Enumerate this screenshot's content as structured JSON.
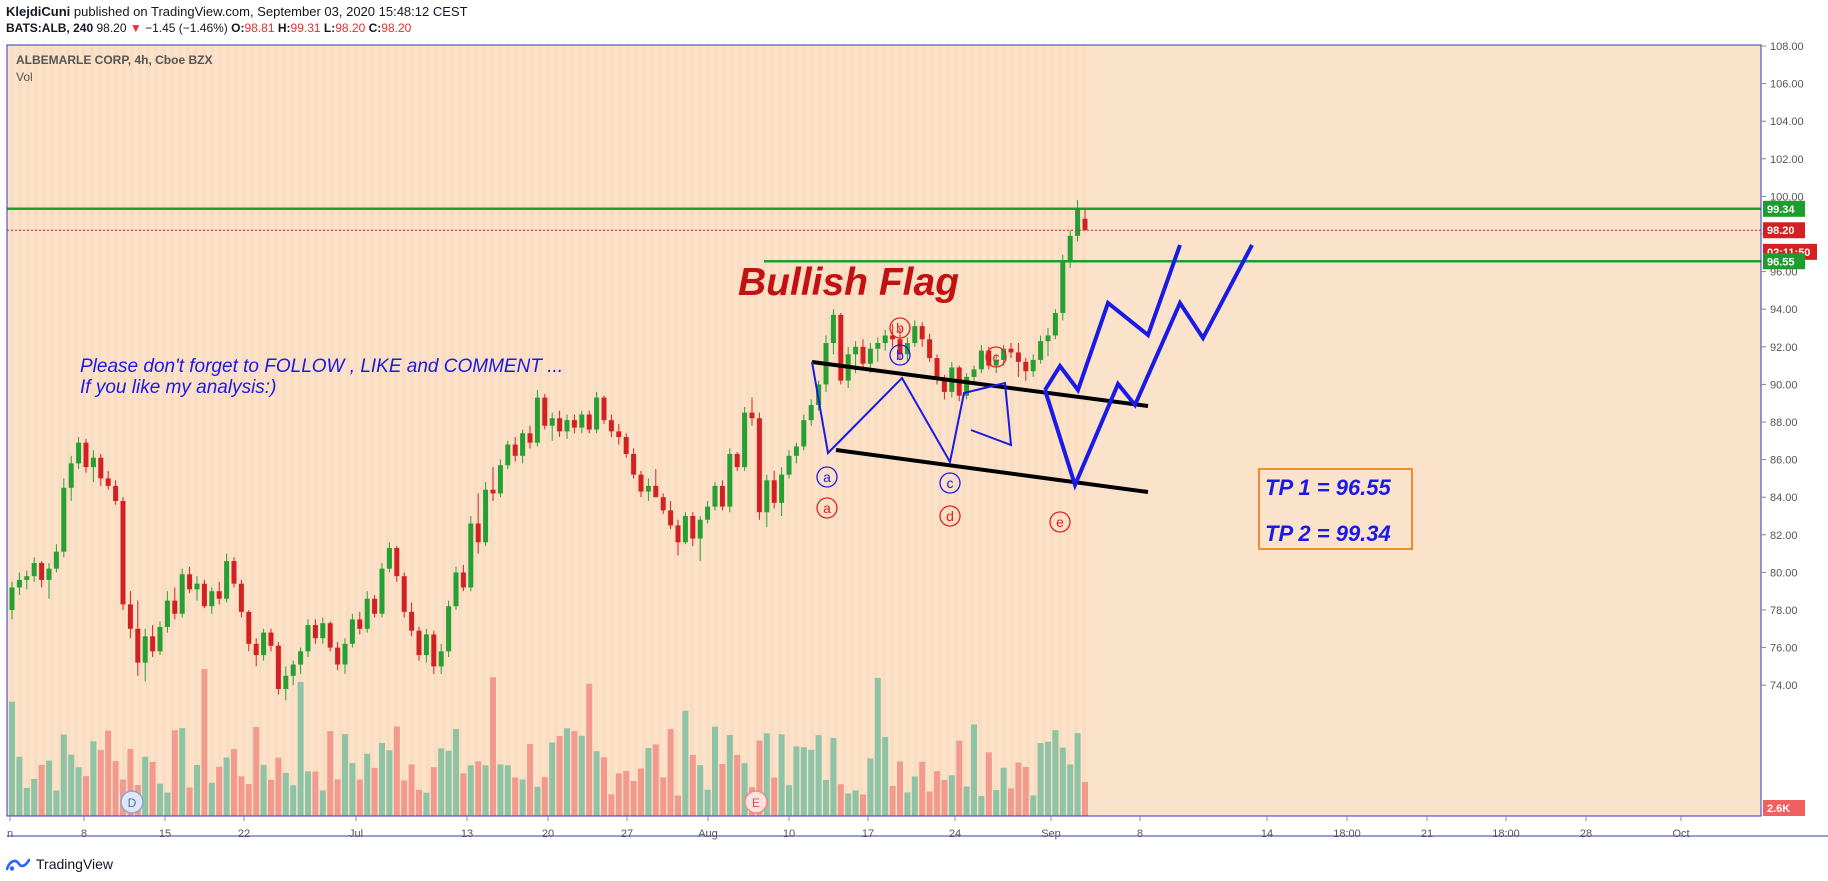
{
  "header": {
    "author": "KlejdiCuni",
    "published_text": " published on TradingView.com, September 03, 2020 15:48:12 CEST",
    "symbol_line": "BATS:ALB, 240",
    "last": "98.20",
    "change": "−1.45 (−1.46%)",
    "o_label": "O:",
    "o": "98.81",
    "h_label": "H:",
    "h": "99.31",
    "l_label": "L:",
    "l": "98.20",
    "c_label": "C:",
    "c": "98.20"
  },
  "pane": {
    "title": "ALBEMARLE CORP, 4h, Cboe BZX",
    "indicator": "Vol"
  },
  "footer": {
    "brand": "TradingView"
  },
  "colors": {
    "background": "#fbe3cb",
    "up": "#26a033",
    "down": "#d32121",
    "vol_up": "#8fc3a6",
    "vol_down": "#f39a8f",
    "support_line": "#1d9e2c",
    "projection": "#1a1ae6",
    "bullish_flag_text": "#c31010",
    "tp_box_border": "#f28c28"
  },
  "annotations": {
    "bullish_flag": "Bullish Flag",
    "note_line1": "Please don't forget  to FOLLOW , LIKE and COMMENT ...",
    "note_line2": "If you like my analysis:)",
    "tp1": "TP 1 = 96.55",
    "tp2": "TP 2 = 99.34",
    "wave_labels_blue": [
      "a",
      "b",
      "c"
    ],
    "wave_labels_red": [
      "a",
      "b",
      "c",
      "d",
      "e"
    ],
    "event_markers": [
      "D",
      "E"
    ]
  },
  "chart_data": {
    "type": "candlestick",
    "title": "ALBEMARLE CORP, 4h, Cboe BZX",
    "y_axis_ticks": [
      "108.00",
      "106.00",
      "104.00",
      "102.00",
      "100.00",
      "98.00",
      "96.00",
      "94.00",
      "92.00",
      "90.00",
      "88.00",
      "86.00",
      "84.00",
      "82.00",
      "80.00",
      "78.00",
      "76.00",
      "74.00"
    ],
    "x_axis_ticks": [
      "n",
      "8",
      "15",
      "22",
      "Jul",
      "13",
      "20",
      "27",
      "Aug",
      "10",
      "17",
      "24",
      "Sep",
      "8",
      "14",
      "18:00",
      "21",
      "18:00",
      "28",
      "Oct"
    ],
    "ylim": [
      73.2,
      108.6
    ],
    "price_labels": [
      {
        "label": "99.34",
        "value": 99.34,
        "color": "#1d9e2c"
      },
      {
        "label": "98.20",
        "value": 98.2,
        "color": "#d32121"
      },
      {
        "label": "02:11:50",
        "value": 97.05,
        "color": "#d32121"
      },
      {
        "label": "96.55",
        "value": 96.55,
        "color": "#1d9e2c"
      },
      {
        "label": "2.6K",
        "value": 73.6,
        "color": "#f15f60"
      }
    ],
    "horizontal_levels": [
      {
        "name": "TP 2",
        "value": 99.34
      },
      {
        "name": "TP 1",
        "value": 96.55
      },
      {
        "name": "last",
        "value": 98.2
      }
    ],
    "candles": [
      [
        78,
        79.5,
        77.5,
        79.2
      ],
      [
        79.2,
        80,
        78.8,
        79.6
      ],
      [
        79.6,
        80.1,
        79.1,
        79.8
      ],
      [
        79.8,
        80.8,
        79.5,
        80.5
      ],
      [
        80.5,
        80.6,
        79.2,
        79.6
      ],
      [
        79.6,
        80.5,
        78.6,
        80.2
      ],
      [
        80.2,
        81.5,
        80,
        81.1
      ],
      [
        81.1,
        85,
        80.8,
        84.5
      ],
      [
        84.5,
        86.2,
        83.8,
        85.8
      ],
      [
        85.8,
        87.2,
        85.5,
        86.9
      ],
      [
        86.9,
        87.1,
        85.3,
        85.6
      ],
      [
        85.6,
        86.5,
        84.8,
        86.1
      ],
      [
        86.1,
        86.3,
        84.6,
        85
      ],
      [
        85,
        85.4,
        84.4,
        84.6
      ],
      [
        84.6,
        84.9,
        83.6,
        83.8
      ],
      [
        83.8,
        84,
        78,
        78.3
      ],
      [
        78.3,
        79,
        76.5,
        77
      ],
      [
        77,
        78.5,
        74.5,
        75.2
      ],
      [
        75.2,
        77,
        74.2,
        76.6
      ],
      [
        76.6,
        77.2,
        75.5,
        75.8
      ],
      [
        75.8,
        77.4,
        75.6,
        77.1
      ],
      [
        77.1,
        79,
        76.8,
        78.5
      ],
      [
        78.5,
        79.2,
        77.5,
        77.8
      ],
      [
        77.8,
        80.2,
        77.6,
        79.9
      ],
      [
        79.9,
        80.3,
        78.9,
        79.1
      ],
      [
        79.1,
        79.8,
        78.5,
        79.4
      ],
      [
        79.4,
        79.6,
        78.1,
        78.2
      ],
      [
        78.2,
        79.2,
        77.8,
        79
      ],
      [
        79,
        79.5,
        78.3,
        78.6
      ],
      [
        78.6,
        81,
        78.4,
        80.6
      ],
      [
        80.6,
        80.8,
        79.2,
        79.4
      ],
      [
        79.4,
        79.6,
        77.6,
        77.9
      ],
      [
        77.9,
        78,
        75.8,
        76.2
      ],
      [
        76.2,
        76.5,
        75,
        75.6
      ],
      [
        75.6,
        77,
        75.3,
        76.8
      ],
      [
        76.8,
        77,
        75.8,
        76.1
      ],
      [
        76.1,
        76.3,
        73.5,
        73.8
      ],
      [
        73.8,
        75,
        73.2,
        74.5
      ],
      [
        74.5,
        75.3,
        74,
        75.1
      ],
      [
        75.1,
        76,
        74.6,
        75.8
      ],
      [
        75.8,
        77.5,
        75.5,
        77.2
      ],
      [
        77.2,
        77.5,
        76.2,
        76.5
      ],
      [
        76.5,
        77.6,
        76.2,
        77.3
      ],
      [
        77.3,
        77.4,
        75.8,
        76
      ],
      [
        76,
        76.3,
        74.8,
        75.1
      ],
      [
        75.1,
        76.5,
        74.6,
        76.2
      ],
      [
        76.2,
        77.8,
        76,
        77.5
      ],
      [
        77.5,
        77.9,
        76.7,
        77
      ],
      [
        77,
        79,
        76.8,
        78.6
      ],
      [
        78.6,
        78.8,
        77.6,
        77.8
      ],
      [
        77.8,
        80.5,
        77.6,
        80.2
      ],
      [
        80.2,
        81.6,
        80,
        81.3
      ],
      [
        81.3,
        81.4,
        79.5,
        79.8
      ],
      [
        79.8,
        80,
        77.6,
        77.9
      ],
      [
        77.9,
        78.4,
        76.6,
        76.9
      ],
      [
        76.9,
        77.1,
        75.3,
        75.6
      ],
      [
        75.6,
        77,
        75.2,
        76.7
      ],
      [
        76.7,
        76.9,
        74.6,
        75
      ],
      [
        75,
        76.2,
        74.6,
        75.8
      ],
      [
        75.8,
        78.5,
        75.5,
        78.2
      ],
      [
        78.2,
        80.3,
        78,
        80
      ],
      [
        80,
        80.4,
        79,
        79.2
      ],
      [
        79.2,
        83,
        79,
        82.6
      ],
      [
        82.6,
        84.2,
        81,
        81.6
      ],
      [
        81.6,
        84.8,
        81.4,
        84.4
      ],
      [
        84.4,
        85.6,
        83.8,
        84.2
      ],
      [
        84.2,
        86,
        84,
        85.7
      ],
      [
        85.7,
        87,
        85.5,
        86.8
      ],
      [
        86.8,
        87.2,
        85.9,
        86.2
      ],
      [
        86.2,
        87.6,
        85.8,
        87.4
      ],
      [
        87.4,
        87.8,
        86.6,
        86.9
      ],
      [
        86.9,
        89.7,
        86.7,
        89.3
      ],
      [
        89.3,
        89.5,
        87.6,
        87.8
      ],
      [
        87.8,
        88.5,
        87,
        88.2
      ],
      [
        88.2,
        88.6,
        87.2,
        87.5
      ],
      [
        87.5,
        88.4,
        87.1,
        88.1
      ],
      [
        88.1,
        88.4,
        87.4,
        87.7
      ],
      [
        87.7,
        88.6,
        87.4,
        88.4
      ],
      [
        88.4,
        88.6,
        87.4,
        87.6
      ],
      [
        87.6,
        89.6,
        87.4,
        89.3
      ],
      [
        89.3,
        89.4,
        87.9,
        88.1
      ],
      [
        88.1,
        88.4,
        87.2,
        87.5
      ],
      [
        87.5,
        87.9,
        86.8,
        87.2
      ],
      [
        87.2,
        87.4,
        86.1,
        86.3
      ],
      [
        86.3,
        86.6,
        85,
        85.2
      ],
      [
        85.2,
        85.4,
        84,
        84.3
      ],
      [
        84.3,
        85,
        83.8,
        84.6
      ],
      [
        84.6,
        85.5,
        84,
        84
      ],
      [
        84,
        84.2,
        83.1,
        83.3
      ],
      [
        83.3,
        83.8,
        82.3,
        82.5
      ],
      [
        82.5,
        82.8,
        80.9,
        81.6
      ],
      [
        81.6,
        83.2,
        81.5,
        83
      ],
      [
        83,
        83.2,
        81.4,
        81.8
      ],
      [
        81.8,
        83,
        80.6,
        82.8
      ],
      [
        82.8,
        83.8,
        82.6,
        83.5
      ],
      [
        83.5,
        84.8,
        83.3,
        84.6
      ],
      [
        84.6,
        84.9,
        83.3,
        83.5
      ],
      [
        83.5,
        86.6,
        83.2,
        86.3
      ],
      [
        86.3,
        86.4,
        85.4,
        85.6
      ],
      [
        85.6,
        88.8,
        85.4,
        88.5
      ],
      [
        88.5,
        89.3,
        87.8,
        88.2
      ],
      [
        88.2,
        88.5,
        82.8,
        83.2
      ],
      [
        83.2,
        85.2,
        82.4,
        84.9
      ],
      [
        84.9,
        85.4,
        83.4,
        83.7
      ],
      [
        83.7,
        85.6,
        83,
        85.2
      ],
      [
        85.2,
        86.5,
        85,
        86.2
      ],
      [
        86.2,
        86.9,
        85.8,
        86.7
      ],
      [
        86.7,
        88.4,
        86.5,
        88.1
      ],
      [
        88.1,
        89.2,
        87.8,
        88.9
      ],
      [
        88.9,
        90.2,
        88.6,
        90
      ],
      [
        90,
        92.6,
        89.6,
        92.2
      ],
      [
        92.2,
        94,
        91.6,
        93.7
      ],
      [
        93.7,
        93.8,
        90,
        90.2
      ],
      [
        90.2,
        92,
        89.8,
        91.6
      ],
      [
        91.6,
        92.3,
        90.6,
        92
      ],
      [
        92,
        92.4,
        90.9,
        91.1
      ],
      [
        91.1,
        92.2,
        90.6,
        91.9
      ],
      [
        91.9,
        92.5,
        91.2,
        92.2
      ],
      [
        92.2,
        92.9,
        91.8,
        92.6
      ],
      [
        92.6,
        93.2,
        92,
        92.4
      ],
      [
        92.4,
        93,
        91.3,
        91.6
      ],
      [
        91.6,
        92.5,
        91.2,
        92.2
      ],
      [
        92.2,
        93.4,
        92,
        93.1
      ],
      [
        93.1,
        93.3,
        92,
        92.4
      ],
      [
        92.4,
        92.7,
        91.2,
        91.4
      ],
      [
        91.4,
        91.6,
        90,
        90.3
      ],
      [
        90.3,
        90.5,
        89.2,
        89.6
      ],
      [
        89.6,
        91.2,
        89.3,
        90.9
      ],
      [
        90.9,
        91,
        89.1,
        89.4
      ],
      [
        89.4,
        90.6,
        89.2,
        90.4
      ],
      [
        90.4,
        91,
        90.1,
        90.8
      ],
      [
        90.8,
        92.1,
        90.6,
        91.8
      ],
      [
        91.8,
        92,
        90.8,
        91
      ],
      [
        91,
        91.6,
        90.6,
        91.3
      ],
      [
        91.3,
        92.1,
        91,
        91.9
      ],
      [
        91.9,
        92.2,
        91.4,
        91.7
      ],
      [
        91.7,
        92.2,
        90.4,
        91.2
      ],
      [
        91.2,
        91.4,
        90.2,
        90.7
      ],
      [
        90.7,
        91.6,
        90.4,
        91.3
      ],
      [
        91.3,
        92.6,
        91.1,
        92.3
      ],
      [
        92.3,
        93,
        91.5,
        92.6
      ],
      [
        92.6,
        94,
        92.4,
        93.8
      ],
      [
        93.8,
        96.9,
        93.4,
        96.5
      ],
      [
        96.5,
        98.2,
        96.2,
        97.9
      ],
      [
        97.9,
        99.8,
        97.6,
        99.3
      ],
      [
        98.81,
        99.31,
        98.2,
        98.2
      ]
    ],
    "volume_shown": "relative bars in lower overlay (2.6K current)"
  }
}
